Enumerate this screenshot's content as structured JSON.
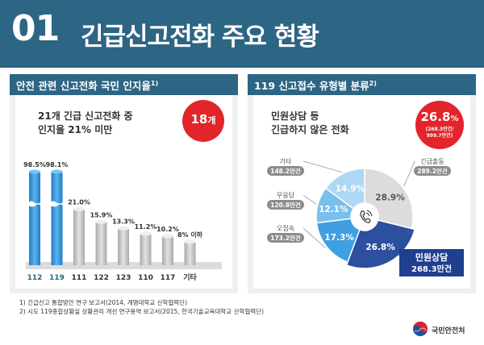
{
  "header": {
    "number": "01",
    "title": "긴급신고전화 주요 현황"
  },
  "left_panel": {
    "title": "안전 관련 신고전화 국민 인지율",
    "title_ref": "1)",
    "desc_line1": "21개 긴급 신고전화 중",
    "desc_line2": "인지율 21% 미만",
    "badge_value": "18",
    "badge_unit": "개"
  },
  "right_panel": {
    "title": "119 신고접수 유형별 분류",
    "title_ref": "2)",
    "desc_line1": "민원상담 등",
    "desc_line2": "긴급하지 않은 전화",
    "badge_value": "26.8",
    "badge_unit": "%",
    "badge_sub1": "(268.3만건/",
    "badge_sub2": "999.7만건)"
  },
  "footnotes": {
    "note1_num": "1)",
    "note1": " 긴급신고 통합방안 연구 보고서(2014, 계명대학교 산학협력단)",
    "note2_num": "2)",
    "note2": " 시도 119종합상황실 상황관리 개선 연구용역 보고서(2015, 한국기술교육대학교 산학협력단)"
  },
  "logo_text": "국민안전처",
  "icons": {
    "center": "phone-icon",
    "logo": "taegeuk-icon"
  },
  "chart_data": [
    {
      "type": "bar",
      "title": "안전 관련 신고전화 국민 인지율",
      "categories": [
        "112",
        "119",
        "111",
        "122",
        "123",
        "110",
        "117",
        "기타"
      ],
      "values": [
        98.5,
        98.1,
        21.0,
        15.9,
        13.3,
        11.2,
        10.2,
        8
      ],
      "labels": [
        "98.5%",
        "98.1%",
        "21.0%",
        "15.9%",
        "13.3%",
        "11.2%",
        "10.2%",
        "8% 이하"
      ],
      "highlight": [
        "112",
        "119"
      ],
      "axis_break": true,
      "colors": {
        "highlight": "#2e8fd8",
        "normal": "#c4c4c4",
        "highlight_label": "#2d6584",
        "normal_label": "#333333"
      }
    },
    {
      "type": "pie",
      "title": "119 신고접수 유형별 분류",
      "total": "999.7만건",
      "slices": [
        {
          "name": "긴급출동",
          "value": 28.9,
          "pct_label": "28.9%",
          "count": "289.2만건",
          "color": "#dcdcdc"
        },
        {
          "name": "민원상담",
          "value": 26.8,
          "pct_label": "26.8%",
          "count": "268.3만건",
          "color": "#2c4f9e"
        },
        {
          "name": "오접속",
          "value": 17.3,
          "pct_label": "17.3%",
          "count": "173.2만건",
          "color": "#3f9fe0"
        },
        {
          "name": "무응답",
          "value": 12.1,
          "pct_label": "12.1%",
          "count": "120.8만건",
          "color": "#79bfeb"
        },
        {
          "name": "기타",
          "value": 14.9,
          "pct_label": "14.9%",
          "count": "148.2만건",
          "color": "#add8f3"
        }
      ]
    }
  ]
}
